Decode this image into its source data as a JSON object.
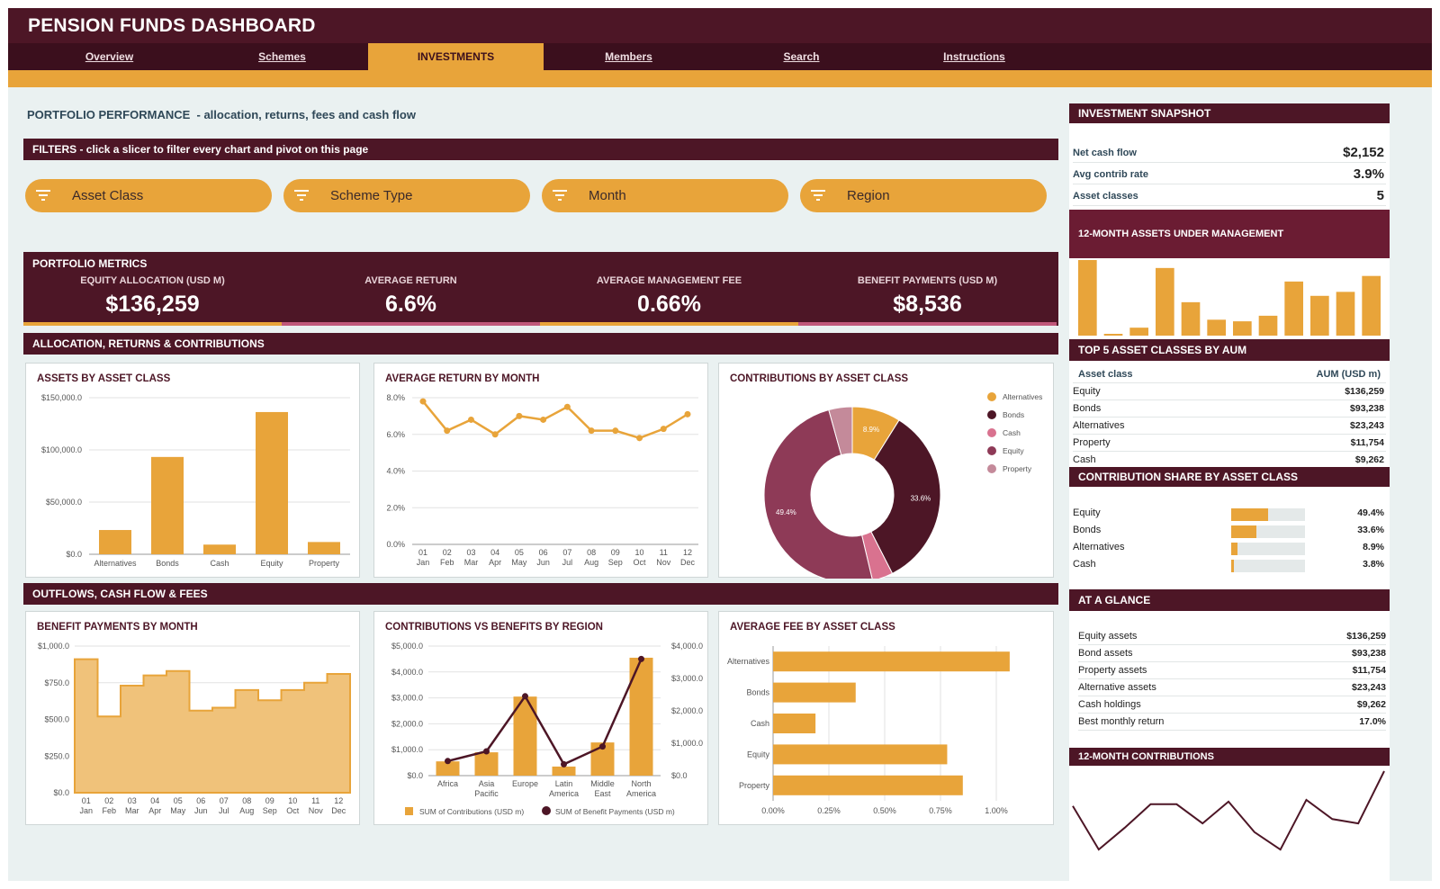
{
  "app": {
    "title": "PENSION FUNDS DASHBOARD"
  },
  "nav": [
    {
      "label": "Overview",
      "active": false
    },
    {
      "label": "Schemes",
      "active": false
    },
    {
      "label": "INVESTMENTS",
      "active": true
    },
    {
      "label": "Members",
      "active": false
    },
    {
      "label": "Search",
      "active": false
    },
    {
      "label": "Instructions",
      "active": false
    }
  ],
  "page": {
    "subtitle_main": "PORTFOLIO PERFORMANCE",
    "subtitle_rest": "-  allocation, returns, fees and cash flow"
  },
  "filters": {
    "header": "FILTERS  -  click a slicer to filter every chart and pivot on this page",
    "slicers": [
      "Asset Class",
      "Scheme Type",
      "Month",
      "Region"
    ],
    "icon": "filter-icon"
  },
  "metrics": {
    "header": "PORTFOLIO METRICS",
    "items": [
      {
        "label": "EQUITY ALLOCATION (USD M)",
        "value": "$136,259",
        "accent": "#e8a43a"
      },
      {
        "label": "AVERAGE RETURN",
        "value": "6.6%",
        "accent": "#c0587a"
      },
      {
        "label": "AVERAGE MANAGEMENT FEE",
        "value": "0.66%",
        "accent": "#e8a43a"
      },
      {
        "label": "BENEFIT PAYMENTS (USD M)",
        "value": "$8,536",
        "accent": "#c0587a"
      }
    ]
  },
  "sections": {
    "alloc": "ALLOCATION, RETURNS & CONTRIBUTIONS",
    "outflows": "OUTFLOWS, CASH FLOW & FEES"
  },
  "colors": {
    "maroon": "#4d1626",
    "gold": "#e8a43a",
    "pink": "#d9728f",
    "plum": "#8e3a57",
    "mauve": "#c48a9a"
  },
  "chart_data": [
    {
      "id": "assets-by-class",
      "type": "bar",
      "title": "ASSETS BY ASSET CLASS",
      "categories": [
        "Alternatives",
        "Bonds",
        "Cash",
        "Equity",
        "Property"
      ],
      "values": [
        23243,
        93238,
        9262,
        136259,
        11754
      ],
      "ylim": [
        0,
        150000
      ],
      "yticks": [
        "$0.0",
        "$50,000.0",
        "$100,000.0",
        "$150,000.0"
      ],
      "ytick_values": [
        0,
        50000,
        100000,
        150000
      ]
    },
    {
      "id": "avg-return-by-month",
      "type": "line",
      "title": "AVERAGE RETURN BY MONTH",
      "x": [
        "01",
        "02",
        "03",
        "04",
        "05",
        "06",
        "07",
        "08",
        "09",
        "10",
        "11",
        "12"
      ],
      "x2": [
        "Jan",
        "Feb",
        "Mar",
        "Apr",
        "May",
        "Jun",
        "Jul",
        "Aug",
        "Sep",
        "Oct",
        "Nov",
        "Dec"
      ],
      "values": [
        7.8,
        6.2,
        6.8,
        6.0,
        7.0,
        6.8,
        7.5,
        6.2,
        6.2,
        5.8,
        6.3,
        7.1
      ],
      "ylim": [
        0,
        8
      ],
      "yticks": [
        "0.0%",
        "2.0%",
        "4.0%",
        "6.0%",
        "8.0%"
      ],
      "ytick_values": [
        0,
        2,
        4,
        6,
        8
      ]
    },
    {
      "id": "contrib-by-class",
      "type": "pie",
      "title": "CONTRIBUTIONS BY ASSET CLASS",
      "slices": [
        {
          "name": "Alternatives",
          "value": 8.9,
          "label": "8.9%",
          "color": "#e8a43a"
        },
        {
          "name": "Bonds",
          "value": 33.6,
          "label": "33.6%",
          "color": "#4d1626"
        },
        {
          "name": "Cash",
          "value": 3.8,
          "label": "",
          "color": "#d9728f"
        },
        {
          "name": "Equity",
          "value": 49.4,
          "label": "49.4%",
          "color": "#8e3a57"
        },
        {
          "name": "Property",
          "value": 4.3,
          "label": "",
          "color": "#c48a9a"
        }
      ]
    },
    {
      "id": "benefit-by-month",
      "type": "area",
      "title": "BENEFIT PAYMENTS BY MONTH",
      "x": [
        "01",
        "02",
        "03",
        "04",
        "05",
        "06",
        "07",
        "08",
        "09",
        "10",
        "11",
        "12"
      ],
      "x2": [
        "Jan",
        "Feb",
        "Mar",
        "Apr",
        "May",
        "Jun",
        "Jul",
        "Aug",
        "Sep",
        "Oct",
        "Nov",
        "Dec"
      ],
      "values": [
        910,
        520,
        730,
        800,
        830,
        560,
        580,
        700,
        630,
        700,
        750,
        810
      ],
      "ylim": [
        0,
        1000
      ],
      "yticks": [
        "$0.0",
        "$250.0",
        "$500.0",
        "$750.0",
        "$1,000.0"
      ],
      "ytick_values": [
        0,
        250,
        500,
        750,
        1000
      ]
    },
    {
      "id": "contrib-vs-benefits",
      "type": "bar",
      "title": "CONTRIBUTIONS VS BENEFITS BY REGION",
      "categories": [
        "Africa",
        "Asia Pacific",
        "Europe",
        "Latin America",
        "Middle East",
        "North America"
      ],
      "cat_lines": [
        [
          "Africa"
        ],
        [
          "Asia",
          "Pacific"
        ],
        [
          "Europe"
        ],
        [
          "Latin",
          "America"
        ],
        [
          "Middle",
          "East"
        ],
        [
          "North",
          "America"
        ]
      ],
      "series": [
        {
          "name": "SUM of Contributions (USD m)",
          "values": [
            550,
            900,
            3050,
            350,
            1280,
            4550
          ],
          "axis": "left"
        },
        {
          "name": "SUM of Benefit Payments (USD m)",
          "values": [
            450,
            750,
            2450,
            350,
            900,
            3600
          ],
          "axis": "right"
        }
      ],
      "ylim": [
        0,
        5000
      ],
      "yticks": [
        "$0.0",
        "$1,000.0",
        "$2,000.0",
        "$3,000.0",
        "$4,000.0",
        "$5,000.0"
      ],
      "ytick_values": [
        0,
        1000,
        2000,
        3000,
        4000,
        5000
      ],
      "y2lim": [
        0,
        4000
      ],
      "y2ticks": [
        "$0.0",
        "$1,000.0",
        "$2,000.0",
        "$3,000.0",
        "$4,000.0"
      ],
      "y2tick_values": [
        0,
        1000,
        2000,
        3000,
        4000
      ]
    },
    {
      "id": "avg-fee-by-class",
      "type": "bar",
      "title": "AVERAGE FEE BY ASSET CLASS",
      "orientation": "horizontal",
      "categories": [
        "Alternatives",
        "Bonds",
        "Cash",
        "Equity",
        "Property"
      ],
      "values": [
        1.06,
        0.37,
        0.19,
        0.78,
        0.85
      ],
      "xlim": [
        0,
        1.25
      ],
      "xticks": [
        "0.00%",
        "0.25%",
        "0.50%",
        "0.75%",
        "1.00%"
      ],
      "xtick_values": [
        0,
        0.25,
        0.5,
        0.75,
        1.0
      ]
    },
    {
      "id": "aum-12m",
      "type": "bar",
      "title": "12-MONTH ASSETS UNDER MANAGEMENT",
      "values": [
        95,
        2,
        10,
        85,
        42,
        20,
        18,
        25,
        68,
        50,
        55,
        75
      ]
    },
    {
      "id": "contrib-12m",
      "type": "line",
      "title": "12-MONTH CONTRIBUTIONS",
      "values": [
        55,
        5,
        30,
        57,
        57,
        35,
        60,
        25,
        5,
        62,
        40,
        35,
        95
      ]
    }
  ],
  "snapshot": {
    "header": "INVESTMENT SNAPSHOT",
    "rows": [
      {
        "label": "Net cash flow",
        "value": "$2,152"
      },
      {
        "label": "Avg contrib rate",
        "value": "3.9%"
      },
      {
        "label": "Asset classes",
        "value": "5"
      }
    ]
  },
  "top5": {
    "header": "TOP 5 ASSET CLASSES BY AUM",
    "col1": "Asset class",
    "col2": "AUM (USD m)",
    "rows": [
      {
        "label": "Equity",
        "value": "$136,259"
      },
      {
        "label": "Bonds",
        "value": "$93,238"
      },
      {
        "label": "Alternatives",
        "value": "$23,243"
      },
      {
        "label": "Property",
        "value": "$11,754"
      },
      {
        "label": "Cash",
        "value": "$9,262"
      }
    ]
  },
  "share": {
    "header": "CONTRIBUTION SHARE BY ASSET CLASS",
    "rows": [
      {
        "label": "Equity",
        "value": "49.4%",
        "pct": 49.4
      },
      {
        "label": "Bonds",
        "value": "33.6%",
        "pct": 33.6
      },
      {
        "label": "Alternatives",
        "value": "8.9%",
        "pct": 8.9
      },
      {
        "label": "Cash",
        "value": "3.8%",
        "pct": 3.8
      }
    ]
  },
  "glance": {
    "header": "AT A GLANCE",
    "rows": [
      {
        "label": "Equity assets",
        "value": "$136,259"
      },
      {
        "label": "Bond assets",
        "value": "$93,238"
      },
      {
        "label": "Property assets",
        "value": "$11,754"
      },
      {
        "label": "Alternative assets",
        "value": "$23,243"
      },
      {
        "label": "Cash holdings",
        "value": "$9,262"
      },
      {
        "label": "Best monthly return",
        "value": "17.0%"
      }
    ]
  }
}
